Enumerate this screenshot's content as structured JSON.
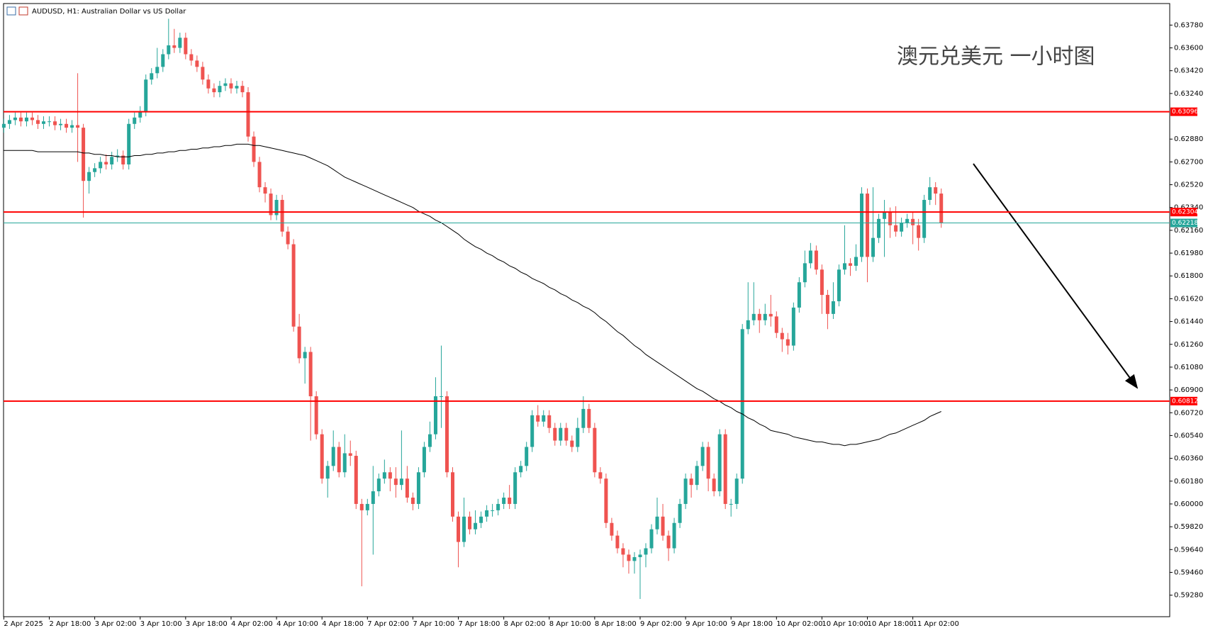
{
  "chart_data": {
    "type": "candlestick",
    "title": "AUDUSD, H1:  Australian Dollar vs US Dollar",
    "annotation": "澳元兑美元 一小时图",
    "up_color": "#26a69a",
    "down_color": "#ef5350",
    "categories": [
      "2 Apr 2025",
      null,
      null,
      null,
      null,
      null,
      null,
      null,
      "2 Apr 18:00",
      null,
      null,
      null,
      null,
      null,
      null,
      null,
      "3 Apr 02:00",
      null,
      null,
      null,
      null,
      null,
      null,
      null,
      "3 Apr 10:00",
      null,
      null,
      null,
      null,
      null,
      null,
      null,
      "3 Apr 18:00",
      null,
      null,
      null,
      null,
      null,
      null,
      null,
      "4 Apr 02:00",
      null,
      null,
      null,
      null,
      null,
      null,
      null,
      "4 Apr 10:00",
      null,
      null,
      null,
      null,
      null,
      null,
      null,
      "4 Apr 18:00",
      null,
      null,
      null,
      null,
      null,
      null,
      null,
      "7 Apr 02:00",
      null,
      null,
      null,
      null,
      null,
      null,
      null,
      "7 Apr 10:00",
      null,
      null,
      null,
      null,
      null,
      null,
      null,
      "7 Apr 18:00",
      null,
      null,
      null,
      null,
      null,
      null,
      null,
      "8 Apr 02:00",
      null,
      null,
      null,
      null,
      null,
      null,
      null,
      "8 Apr 10:00",
      null,
      null,
      null,
      null,
      null,
      null,
      null,
      "8 Apr 18:00",
      null,
      null,
      null,
      null,
      null,
      null,
      null,
      "9 Apr 02:00",
      null,
      null,
      null,
      null,
      null,
      null,
      null,
      "9 Apr 10:00",
      null,
      null,
      null,
      null,
      null,
      null,
      null,
      "9 Apr 18:00",
      null,
      null,
      null,
      null,
      null,
      null,
      null,
      "10 Apr 02:00",
      null,
      null,
      null,
      null,
      null,
      null,
      null,
      "10 Apr 10:00",
      null,
      null,
      null,
      null,
      null,
      null,
      null,
      "10 Apr 18:00",
      null,
      null,
      null,
      null,
      null,
      null,
      null,
      "11 Apr 02:00",
      null,
      null,
      null,
      null,
      null
    ],
    "open": [
      0.6297,
      0.63,
      0.6303,
      0.6305,
      0.6302,
      0.6305,
      0.6303,
      0.63,
      0.6302,
      0.6302,
      0.6299,
      0.63,
      0.6297,
      0.6299,
      0.6297,
      0.6255,
      0.6262,
      0.6265,
      0.627,
      0.6268,
      0.6274,
      0.6275,
      0.6268,
      0.63,
      0.6305,
      0.631,
      0.6335,
      0.634,
      0.6345,
      0.6355,
      0.6362,
      0.636,
      0.6368,
      0.6355,
      0.635,
      0.6345,
      0.6335,
      0.6328,
      0.6325,
      0.633,
      0.6332,
      0.6328,
      0.633,
      0.6325,
      0.629,
      0.627,
      0.625,
      0.6245,
      0.6228,
      0.624,
      0.6215,
      0.6205,
      0.614,
      0.6115,
      0.612,
      0.6085,
      0.6055,
      0.602,
      0.603,
      0.6045,
      0.6025,
      0.604,
      0.6038,
      0.6,
      0.5995,
      0.6,
      0.601,
      0.602,
      0.6025,
      0.602,
      0.6015,
      0.602,
      0.6005,
      0.6,
      0.6025,
      0.6045,
      0.6055,
      0.6085,
      0.6085,
      0.6025,
      0.599,
      0.597,
      0.599,
      0.598,
      0.5985,
      0.599,
      0.5995,
      0.5995,
      0.6,
      0.6005,
      0.6,
      0.6025,
      0.603,
      0.6045,
      0.607,
      0.6065,
      0.607,
      0.606,
      0.605,
      0.606,
      0.605,
      0.6045,
      0.606,
      0.6075,
      0.606,
      0.6025,
      0.602,
      0.5985,
      0.5975,
      0.5965,
      0.596,
      0.5955,
      0.5958,
      0.596,
      0.5965,
      0.598,
      0.599,
      0.5975,
      0.5965,
      0.5985,
      0.6,
      0.602,
      0.6015,
      0.603,
      0.6045,
      0.602,
      0.601,
      0.6055,
      0.6,
      0.6,
      0.602,
      0.6138,
      0.6145,
      0.615,
      0.6145,
      0.615,
      0.6148,
      0.6135,
      0.613,
      0.6125,
      0.6155,
      0.6175,
      0.619,
      0.62,
      0.6185,
      0.6165,
      0.615,
      0.616,
      0.6185,
      0.619,
      0.6188,
      0.6195,
      0.6245,
      0.6195,
      0.621,
      0.6225,
      0.623,
      0.622,
      0.6215,
      0.6222,
      0.6225,
      0.622,
      0.621,
      0.624,
      0.625,
      0.6245
    ],
    "high": [
      0.6304,
      0.6307,
      0.6309,
      0.6309,
      0.6309,
      0.6309,
      0.6307,
      0.6306,
      0.6306,
      0.6306,
      0.6304,
      0.6304,
      0.6303,
      0.634,
      0.63,
      0.6266,
      0.6269,
      0.6274,
      0.6276,
      0.6278,
      0.628,
      0.6279,
      0.6304,
      0.6309,
      0.6314,
      0.6339,
      0.6344,
      0.636,
      0.6359,
      0.6383,
      0.6375,
      0.6372,
      0.6372,
      0.6359,
      0.6354,
      0.6349,
      0.6339,
      0.6332,
      0.6334,
      0.6336,
      0.6336,
      0.6334,
      0.6334,
      0.6329,
      0.6294,
      0.6274,
      0.6254,
      0.6249,
      0.6244,
      0.6244,
      0.6219,
      0.6209,
      0.615,
      0.6124,
      0.6124,
      0.6089,
      0.6059,
      0.6034,
      0.6058,
      0.6049,
      0.6055,
      0.605,
      0.6042,
      0.6004,
      0.6004,
      0.603,
      0.6024,
      0.6035,
      0.6029,
      0.6029,
      0.6058,
      0.603,
      0.6009,
      0.6029,
      0.6049,
      0.6065,
      0.61,
      0.6125,
      0.6089,
      0.6029,
      0.5994,
      0.6005,
      0.5994,
      0.5995,
      0.5994,
      0.5999,
      0.6,
      0.6004,
      0.6009,
      0.6015,
      0.6029,
      0.6034,
      0.6049,
      0.6074,
      0.6078,
      0.6074,
      0.6074,
      0.6064,
      0.6064,
      0.6064,
      0.6054,
      0.6068,
      0.6085,
      0.6079,
      0.6064,
      0.6029,
      0.6024,
      0.5989,
      0.5979,
      0.5969,
      0.5964,
      0.5962,
      0.5964,
      0.5969,
      0.5984,
      0.6005,
      0.6,
      0.5979,
      0.5989,
      0.6004,
      0.6024,
      0.6024,
      0.6034,
      0.6049,
      0.6049,
      0.6024,
      0.6059,
      0.6059,
      0.6004,
      0.6024,
      0.6142,
      0.6175,
      0.6175,
      0.6154,
      0.6158,
      0.6165,
      0.6152,
      0.6139,
      0.6135,
      0.6159,
      0.6179,
      0.62,
      0.6206,
      0.6204,
      0.6189,
      0.6169,
      0.6175,
      0.6189,
      0.622,
      0.6194,
      0.6205,
      0.625,
      0.6249,
      0.625,
      0.6229,
      0.624,
      0.6234,
      0.6235,
      0.6226,
      0.6229,
      0.623,
      0.6225,
      0.6244,
      0.6258,
      0.6254,
      0.6249
    ],
    "low": [
      0.6293,
      0.6296,
      0.6299,
      0.6298,
      0.6298,
      0.6299,
      0.6296,
      0.6296,
      0.6298,
      0.6295,
      0.6295,
      0.6293,
      0.6293,
      0.627,
      0.6226,
      0.6245,
      0.6258,
      0.6261,
      0.6264,
      0.6264,
      0.627,
      0.6264,
      0.6264,
      0.6296,
      0.6301,
      0.6306,
      0.6331,
      0.6336,
      0.6341,
      0.6351,
      0.6356,
      0.6356,
      0.6351,
      0.6346,
      0.6341,
      0.6331,
      0.6324,
      0.6321,
      0.6321,
      0.6326,
      0.6324,
      0.6324,
      0.6321,
      0.6286,
      0.6266,
      0.6246,
      0.6238,
      0.6224,
      0.6224,
      0.6211,
      0.6201,
      0.6136,
      0.6111,
      0.6095,
      0.605,
      0.6051,
      0.6016,
      0.6005,
      0.6026,
      0.6021,
      0.6021,
      0.603,
      0.5996,
      0.5935,
      0.5991,
      0.596,
      0.6006,
      0.6016,
      0.601,
      0.6005,
      0.6011,
      0.6001,
      0.5995,
      0.5996,
      0.6021,
      0.6041,
      0.6051,
      0.606,
      0.6021,
      0.5986,
      0.595,
      0.5966,
      0.5976,
      0.5976,
      0.5981,
      0.5986,
      0.599,
      0.5991,
      0.5996,
      0.5996,
      0.5996,
      0.6021,
      0.6026,
      0.6041,
      0.6061,
      0.6061,
      0.6056,
      0.6046,
      0.6046,
      0.6046,
      0.6041,
      0.6041,
      0.6056,
      0.6056,
      0.6021,
      0.6016,
      0.5981,
      0.5971,
      0.5961,
      0.595,
      0.5945,
      0.5945,
      0.5925,
      0.595,
      0.5961,
      0.5976,
      0.5971,
      0.5955,
      0.5961,
      0.5981,
      0.5996,
      0.6005,
      0.6011,
      0.6026,
      0.601,
      0.6006,
      0.6006,
      0.5996,
      0.599,
      0.5996,
      0.6016,
      0.6134,
      0.6141,
      0.6135,
      0.6141,
      0.614,
      0.6131,
      0.612,
      0.6118,
      0.6121,
      0.6151,
      0.6171,
      0.6186,
      0.6181,
      0.615,
      0.6138,
      0.6146,
      0.6156,
      0.6181,
      0.618,
      0.6184,
      0.6191,
      0.6175,
      0.6191,
      0.6206,
      0.6195,
      0.621,
      0.6211,
      0.6211,
      0.6218,
      0.6205,
      0.62,
      0.6206,
      0.6236,
      0.6236,
      0.6218
    ],
    "close": [
      0.63,
      0.6303,
      0.6305,
      0.6302,
      0.6305,
      0.6303,
      0.63,
      0.6302,
      0.6302,
      0.6299,
      0.63,
      0.6297,
      0.6299,
      0.6297,
      0.6255,
      0.6262,
      0.6265,
      0.627,
      0.6268,
      0.6274,
      0.6275,
      0.6268,
      0.63,
      0.6305,
      0.631,
      0.6335,
      0.634,
      0.6345,
      0.6355,
      0.6362,
      0.636,
      0.6368,
      0.6355,
      0.635,
      0.6345,
      0.6335,
      0.6328,
      0.6325,
      0.633,
      0.6332,
      0.6328,
      0.633,
      0.6325,
      0.629,
      0.627,
      0.625,
      0.6245,
      0.6228,
      0.624,
      0.6215,
      0.6205,
      0.614,
      0.6115,
      0.612,
      0.6085,
      0.6055,
      0.602,
      0.603,
      0.6045,
      0.6025,
      0.604,
      0.6038,
      0.6,
      0.5995,
      0.6,
      0.601,
      0.602,
      0.6025,
      0.602,
      0.6015,
      0.602,
      0.6005,
      0.6,
      0.6025,
      0.6045,
      0.6055,
      0.6085,
      0.6085,
      0.6025,
      0.599,
      0.597,
      0.599,
      0.598,
      0.5985,
      0.599,
      0.5995,
      0.5995,
      0.6,
      0.6005,
      0.6,
      0.6025,
      0.603,
      0.6045,
      0.607,
      0.6065,
      0.607,
      0.606,
      0.605,
      0.606,
      0.605,
      0.6045,
      0.606,
      0.6075,
      0.606,
      0.6025,
      0.602,
      0.5985,
      0.5975,
      0.5965,
      0.596,
      0.5955,
      0.5958,
      0.596,
      0.5965,
      0.598,
      0.599,
      0.5975,
      0.5965,
      0.5985,
      0.6,
      0.602,
      0.6015,
      0.603,
      0.6045,
      0.602,
      0.601,
      0.6055,
      0.6,
      0.6,
      0.602,
      0.6138,
      0.6145,
      0.615,
      0.6145,
      0.615,
      0.6148,
      0.6135,
      0.613,
      0.6125,
      0.6155,
      0.6175,
      0.619,
      0.62,
      0.6185,
      0.6165,
      0.615,
      0.616,
      0.6185,
      0.619,
      0.6188,
      0.6195,
      0.6245,
      0.6195,
      0.621,
      0.6225,
      0.623,
      0.622,
      0.6215,
      0.6222,
      0.6225,
      0.622,
      0.621,
      0.624,
      0.625,
      0.6245,
      0.6222
    ],
    "moving_average": {
      "color": "#000000",
      "values": [
        0.6279,
        0.6279,
        0.6279,
        0.6279,
        0.6279,
        0.6279,
        0.6278,
        0.6278,
        0.6278,
        0.6278,
        0.6278,
        0.6278,
        0.6278,
        0.6278,
        0.6277,
        0.6277,
        0.6276,
        0.6276,
        0.6275,
        0.6275,
        0.6274,
        0.6274,
        0.6274,
        0.6275,
        0.6275,
        0.6276,
        0.6276,
        0.6277,
        0.6277,
        0.6278,
        0.6278,
        0.6279,
        0.6279,
        0.628,
        0.628,
        0.6281,
        0.6281,
        0.6282,
        0.6282,
        0.6283,
        0.6283,
        0.6284,
        0.6284,
        0.6284,
        0.6283,
        0.6283,
        0.6282,
        0.6281,
        0.628,
        0.6279,
        0.6278,
        0.6277,
        0.6276,
        0.6275,
        0.6273,
        0.6271,
        0.6269,
        0.6267,
        0.6264,
        0.6261,
        0.6258,
        0.6256,
        0.6254,
        0.6252,
        0.625,
        0.6248,
        0.6246,
        0.6244,
        0.6242,
        0.624,
        0.6238,
        0.6236,
        0.6234,
        0.6231,
        0.6229,
        0.6227,
        0.6224,
        0.6222,
        0.6219,
        0.6216,
        0.6213,
        0.6209,
        0.6206,
        0.6203,
        0.6201,
        0.6198,
        0.6196,
        0.6193,
        0.6191,
        0.6188,
        0.6186,
        0.6183,
        0.6181,
        0.6178,
        0.6176,
        0.6174,
        0.6171,
        0.6169,
        0.6166,
        0.6164,
        0.6161,
        0.6159,
        0.6156,
        0.6154,
        0.6151,
        0.6147,
        0.6144,
        0.614,
        0.6136,
        0.6133,
        0.6129,
        0.6125,
        0.6122,
        0.6118,
        0.6115,
        0.6112,
        0.6109,
        0.6106,
        0.6103,
        0.61,
        0.6097,
        0.6094,
        0.6091,
        0.6089,
        0.6086,
        0.6083,
        0.6081,
        0.6078,
        0.6076,
        0.6073,
        0.6071,
        0.6068,
        0.6066,
        0.6063,
        0.6061,
        0.6058,
        0.6057,
        0.6056,
        0.6055,
        0.6053,
        0.6052,
        0.6051,
        0.605,
        0.6049,
        0.6049,
        0.6048,
        0.6047,
        0.6047,
        0.6046,
        0.6047,
        0.6047,
        0.6048,
        0.6049,
        0.605,
        0.6051,
        0.6053,
        0.6055,
        0.6056,
        0.6058,
        0.606,
        0.6062,
        0.6064,
        0.6066,
        0.6069,
        0.6071,
        0.6073
      ]
    },
    "levels": [
      {
        "value": 0.63096,
        "color": "#ff0000"
      },
      {
        "value": 0.62304,
        "color": "#ff0000"
      },
      {
        "value": 0.62218,
        "color": "#26a69a"
      },
      {
        "value": 0.60812,
        "color": "#ff0000"
      }
    ],
    "ylim": [
      0.5911,
      0.6395
    ],
    "yticks": [
      {
        "value": 0.6378,
        "label": "0.63780"
      },
      {
        "value": 0.636,
        "label": "0.63600"
      },
      {
        "value": 0.6342,
        "label": "0.63420"
      },
      {
        "value": 0.6324,
        "label": "0.63240"
      },
      {
        "value": 0.6288,
        "label": "0.62880"
      },
      {
        "value": 0.627,
        "label": "0.62700"
      },
      {
        "value": 0.6252,
        "label": "0.62520"
      },
      {
        "value": 0.6234,
        "label": "0.62340"
      },
      {
        "value": 0.6216,
        "label": "0.62160"
      },
      {
        "value": 0.6198,
        "label": "0.61980"
      },
      {
        "value": 0.618,
        "label": "0.61800"
      },
      {
        "value": 0.6162,
        "label": "0.61620"
      },
      {
        "value": 0.6144,
        "label": "0.61440"
      },
      {
        "value": 0.6126,
        "label": "0.61260"
      },
      {
        "value": 0.6108,
        "label": "0.61080"
      },
      {
        "value": 0.609,
        "label": "0.60900"
      },
      {
        "value": 0.6072,
        "label": "0.60720"
      },
      {
        "value": 0.6054,
        "label": "0.60540"
      },
      {
        "value": 0.6036,
        "label": "0.60360"
      },
      {
        "value": 0.6018,
        "label": "0.60180"
      },
      {
        "value": 0.6,
        "label": "0.60000"
      },
      {
        "value": 0.5982,
        "label": "0.59820"
      },
      {
        "value": 0.5964,
        "label": "0.59640"
      },
      {
        "value": 0.5946,
        "label": "0.59460"
      },
      {
        "value": 0.5928,
        "label": "0.59280"
      }
    ]
  }
}
